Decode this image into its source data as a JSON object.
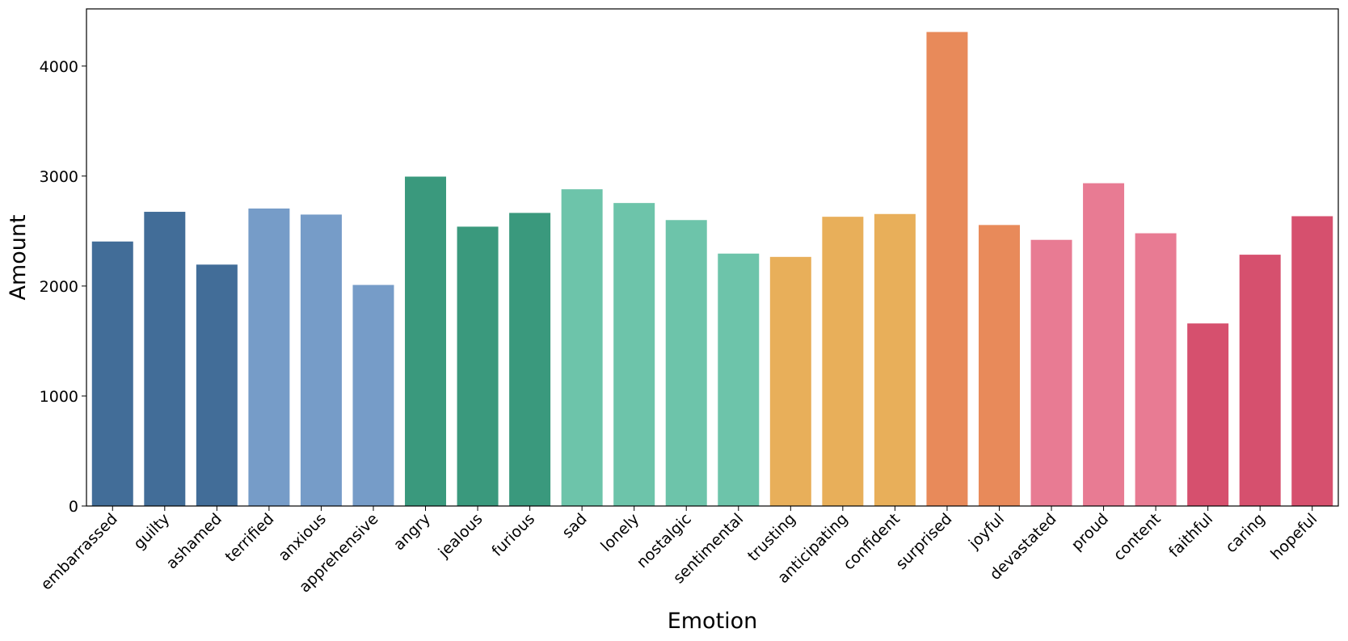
{
  "chart_data": {
    "type": "bar",
    "xlabel": "Emotion",
    "ylabel": "Amount",
    "ylim": [
      0,
      4520
    ],
    "yticks": [
      0,
      1000,
      2000,
      3000,
      4000
    ],
    "grid": false,
    "legend": "none",
    "categories": [
      "embarrassed",
      "guilty",
      "ashamed",
      "terrified",
      "anxious",
      "apprehensive",
      "angry",
      "jealous",
      "furious",
      "sad",
      "lonely",
      "nostalgic",
      "sentimental",
      "trusting",
      "anticipating",
      "confident",
      "surprised",
      "joyful",
      "devastated",
      "proud",
      "content",
      "faithful",
      "caring",
      "hopeful"
    ],
    "values": [
      2405,
      2675,
      2195,
      2705,
      2650,
      2010,
      2995,
      2540,
      2665,
      2880,
      2755,
      2600,
      2295,
      2265,
      2630,
      2655,
      4310,
      2555,
      2420,
      2935,
      2480,
      1660,
      2285,
      2635
    ],
    "colors": [
      "#426d98",
      "#426d98",
      "#426d98",
      "#769cc8",
      "#769cc8",
      "#769cc8",
      "#3a997d",
      "#3a997d",
      "#3a997d",
      "#6dc4aa",
      "#6dc4aa",
      "#6dc4aa",
      "#6dc4aa",
      "#e8af5a",
      "#e8af5a",
      "#e8af5a",
      "#e88a5a",
      "#e88a5a",
      "#e87b93",
      "#e87b93",
      "#e87b93",
      "#d6506e",
      "#d6506e",
      "#d6506e"
    ]
  }
}
